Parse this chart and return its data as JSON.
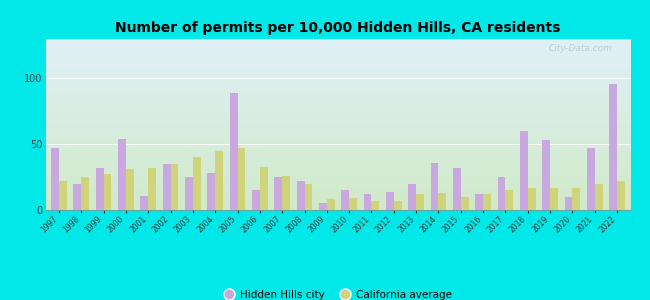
{
  "title": "Number of permits per 10,000 Hidden Hills, CA residents",
  "years": [
    1997,
    1998,
    1999,
    2000,
    2001,
    2002,
    2003,
    2004,
    2005,
    2006,
    2007,
    2008,
    2009,
    2010,
    2011,
    2012,
    2013,
    2014,
    2015,
    2016,
    2017,
    2018,
    2019,
    2020,
    2021,
    2022
  ],
  "city_values": [
    47,
    20,
    32,
    54,
    11,
    35,
    25,
    28,
    89,
    15,
    25,
    22,
    5,
    15,
    12,
    14,
    20,
    36,
    32,
    12,
    25,
    60,
    53,
    10,
    47,
    96
  ],
  "avg_values": [
    22,
    25,
    27,
    31,
    32,
    35,
    40,
    45,
    47,
    33,
    26,
    20,
    8,
    9,
    7,
    7,
    12,
    13,
    10,
    12,
    15,
    17,
    17,
    17,
    20,
    22
  ],
  "city_color": "#c9a8e0",
  "avg_color": "#cfd47a",
  "background_outer": "#00e8e8",
  "background_inner_top": "#e0f0f8",
  "background_inner_bottom": "#d0eac8",
  "ylim": [
    0,
    130
  ],
  "yticks": [
    0,
    50,
    100
  ],
  "bar_width": 0.35,
  "watermark": "City-Data.com",
  "legend_city": "Hidden Hills city",
  "legend_avg": "California average"
}
